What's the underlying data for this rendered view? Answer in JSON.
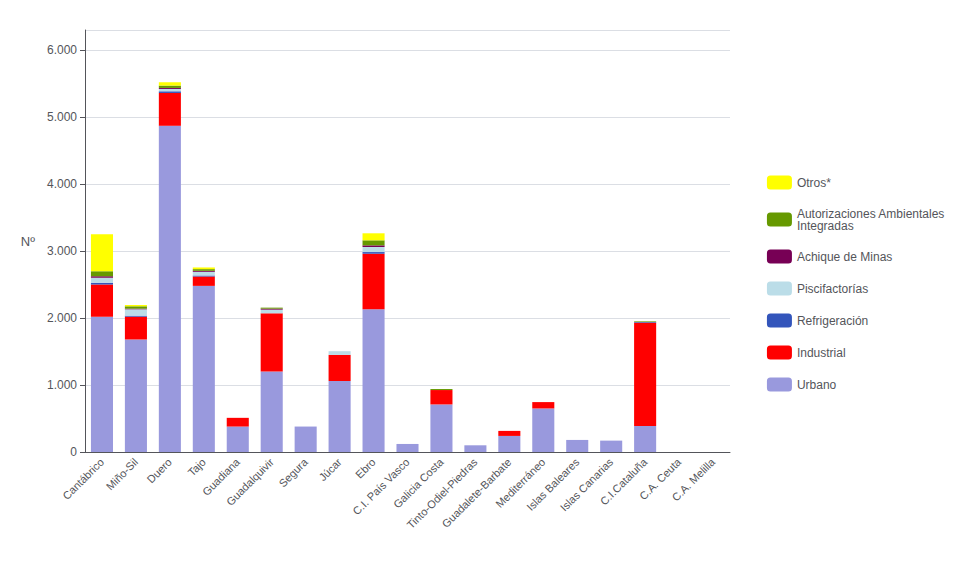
{
  "chart_data": {
    "type": "bar",
    "stacked": true,
    "categories": [
      "Cantábrico",
      "Miño-Sil",
      "Duero",
      "Tajo",
      "Guadiana",
      "Guadalquivir",
      "Segura",
      "Júcar",
      "Ebro",
      "C.I. País Vasco",
      "Galicia Costa",
      "Tinto-Odiel-Piedras",
      "Guadalete-Barbate",
      "Mediterráneo",
      "Islas Baleares",
      "Islas Canarias",
      "C.I.Cataluña",
      "C.A. Ceuta",
      "C.A. Melilla"
    ],
    "series": [
      {
        "name": "Urbano",
        "color": "#9999dd",
        "values": [
          2020,
          1680,
          4870,
          2480,
          380,
          1200,
          380,
          1060,
          2130,
          120,
          710,
          100,
          240,
          650,
          180,
          170,
          390,
          0,
          0
        ]
      },
      {
        "name": "Industrial",
        "color": "#ff0000",
        "values": [
          480,
          340,
          490,
          140,
          130,
          870,
          0,
          390,
          830,
          0,
          215,
          0,
          75,
          95,
          0,
          0,
          1540,
          0,
          0
        ]
      },
      {
        "name": "Refrigeración",
        "color": "#3355bb",
        "values": [
          25,
          15,
          25,
          15,
          0,
          0,
          0,
          0,
          25,
          0,
          0,
          0,
          0,
          0,
          0,
          0,
          10,
          0,
          0
        ]
      },
      {
        "name": "Piscifactorías",
        "color": "#bbdde8",
        "values": [
          75,
          95,
          35,
          55,
          0,
          55,
          0,
          55,
          75,
          0,
          0,
          0,
          0,
          0,
          0,
          0,
          0,
          0,
          0
        ]
      },
      {
        "name": "Achique de Minas",
        "color": "#770055",
        "values": [
          25,
          10,
          15,
          15,
          0,
          15,
          0,
          0,
          25,
          0,
          0,
          0,
          0,
          0,
          0,
          0,
          0,
          0,
          0
        ]
      },
      {
        "name": "Autorizaciones Ambientales\nIntegradas",
        "color": "#669900",
        "values": [
          75,
          35,
          35,
          25,
          0,
          15,
          0,
          0,
          75,
          0,
          15,
          0,
          0,
          0,
          0,
          0,
          10,
          0,
          0
        ]
      },
      {
        "name": "Otros*",
        "color": "#ffff00",
        "values": [
          550,
          20,
          50,
          25,
          0,
          0,
          0,
          0,
          105,
          0,
          0,
          0,
          0,
          0,
          0,
          0,
          0,
          0,
          0
        ]
      }
    ],
    "ylabel": "Nº",
    "ylim": [
      0,
      6300
    ],
    "yticks": [
      0,
      {
        "value": 1000,
        "label": "1.000"
      },
      {
        "value": 2000,
        "label": "2.000"
      },
      {
        "value": 3000,
        "label": "3.000"
      },
      {
        "value": 4000,
        "label": "4.000"
      },
      {
        "value": 5000,
        "label": "5.000"
      },
      {
        "value": 6000,
        "label": "6.000"
      }
    ],
    "grid": true,
    "legend": "right"
  }
}
